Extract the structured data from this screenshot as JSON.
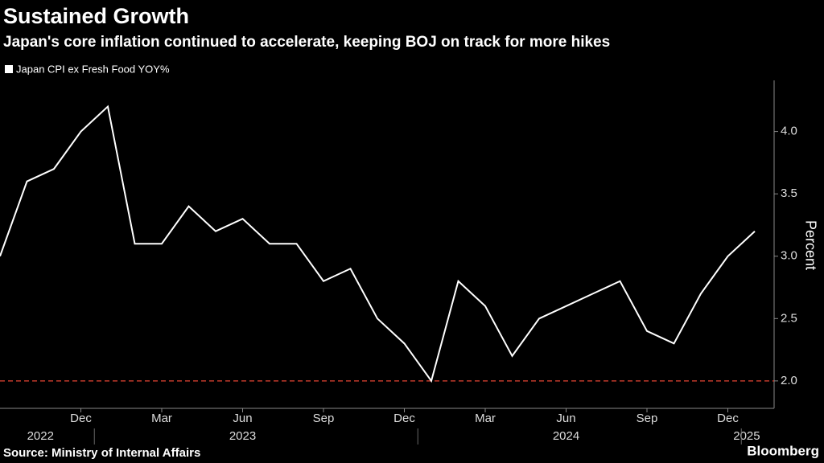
{
  "chart_data": {
    "type": "line",
    "title": "Sustained Growth",
    "subtitle": "Japan's core inflation continued to accelerate, keeping BOJ on track for more hikes",
    "y_axis_label": "Percent",
    "source": "Source: Ministry of Internal Affairs",
    "brand": "Bloomberg",
    "categories": [
      null,
      null,
      null,
      "Dec",
      null,
      null,
      "Mar",
      null,
      null,
      "Jun",
      null,
      null,
      "Sep",
      null,
      null,
      "Dec",
      null,
      null,
      "Mar",
      null,
      null,
      "Jun",
      null,
      null,
      "Sep",
      null,
      null,
      "Dec",
      null
    ],
    "year_labels": [
      "2022",
      "2023",
      "2024",
      "2025"
    ],
    "series": [
      {
        "name": "Japan CPI ex Fresh Food YOY%",
        "color": "#ffffff",
        "values": [
          3.0,
          3.6,
          3.7,
          4.0,
          4.2,
          3.1,
          3.1,
          3.4,
          3.2,
          3.3,
          3.1,
          3.1,
          2.8,
          2.9,
          2.5,
          2.3,
          2.0,
          2.8,
          2.6,
          2.2,
          2.5,
          2.6,
          2.7,
          2.8,
          2.4,
          2.3,
          2.7,
          3.0,
          3.2
        ]
      }
    ],
    "ylim": [
      1.78,
      4.41
    ],
    "yticks": [
      {
        "value": 2,
        "label": "2.0"
      },
      {
        "value": 2.5,
        "label": "2.5"
      },
      {
        "value": 3,
        "label": "3.0"
      },
      {
        "value": 3.5,
        "label": "3.5"
      },
      {
        "value": 4,
        "label": "4.0"
      }
    ],
    "reference_line": {
      "value": 2,
      "color": "#c0392b"
    }
  }
}
